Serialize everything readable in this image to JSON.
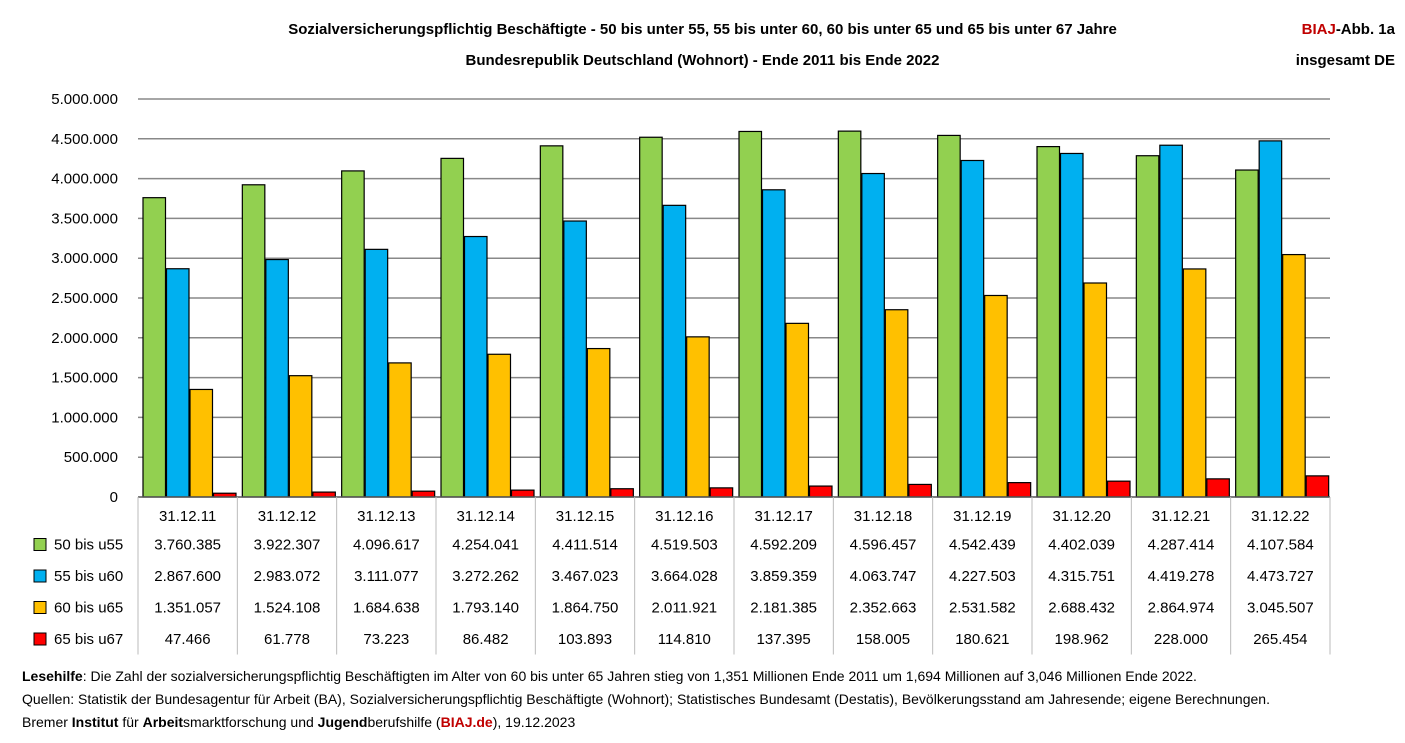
{
  "header": {
    "title_line1": "Sozialversicherungspflichtig Beschäftigte - 50 bis unter 55, 55 bis unter 60, 60 bis unter 65 und 65 bis unter 67 Jahre",
    "title_line2": "Bundesrepublik Deutschland (Wohnort) - Ende 2011 bis Ende 2022",
    "badge_biaj": "BIAJ",
    "badge_rest": "-Abb. 1a",
    "badge_line2": "insgesamt DE"
  },
  "chart_data": {
    "type": "bar",
    "title": "Sozialversicherungspflichtig Beschäftigte - 50 bis unter 55, 55 bis unter 60, 60 bis unter 65 und 65 bis unter 67 Jahre",
    "categories": [
      "31.12.11",
      "31.12.12",
      "31.12.13",
      "31.12.14",
      "31.12.15",
      "31.12.16",
      "31.12.17",
      "31.12.18",
      "31.12.19",
      "31.12.20",
      "31.12.21",
      "31.12.22"
    ],
    "series": [
      {
        "name": "50 bis u55",
        "color": "#92d050",
        "values": [
          3760385,
          3922307,
          4096617,
          4254041,
          4411514,
          4519503,
          4592209,
          4596457,
          4542439,
          4402039,
          4287414,
          4107584
        ],
        "labels": [
          "3.760.385",
          "3.922.307",
          "4.096.617",
          "4.254.041",
          "4.411.514",
          "4.519.503",
          "4.592.209",
          "4.596.457",
          "4.542.439",
          "4.402.039",
          "4.287.414",
          "4.107.584"
        ]
      },
      {
        "name": "55 bis u60",
        "color": "#00b0f0",
        "values": [
          2867600,
          2983072,
          3111077,
          3272262,
          3467023,
          3664028,
          3859359,
          4063747,
          4227503,
          4315751,
          4419278,
          4473727
        ],
        "labels": [
          "2.867.600",
          "2.983.072",
          "3.111.077",
          "3.272.262",
          "3.467.023",
          "3.664.028",
          "3.859.359",
          "4.063.747",
          "4.227.503",
          "4.315.751",
          "4.419.278",
          "4.473.727"
        ]
      },
      {
        "name": "60 bis u65",
        "color": "#ffc000",
        "values": [
          1351057,
          1524108,
          1684638,
          1793140,
          1864750,
          2011921,
          2181385,
          2352663,
          2531582,
          2688432,
          2864974,
          3045507
        ],
        "labels": [
          "1.351.057",
          "1.524.108",
          "1.684.638",
          "1.793.140",
          "1.864.750",
          "2.011.921",
          "2.181.385",
          "2.352.663",
          "2.531.582",
          "2.688.432",
          "2.864.974",
          "3.045.507"
        ]
      },
      {
        "name": "65 bis u67",
        "color": "#ff0000",
        "values": [
          47466,
          61778,
          73223,
          86482,
          103893,
          114810,
          137395,
          158005,
          180621,
          198962,
          228000,
          265454
        ],
        "labels": [
          "47.466",
          "61.778",
          "73.223",
          "86.482",
          "103.893",
          "114.810",
          "137.395",
          "158.005",
          "180.621",
          "198.962",
          "228.000",
          "265.454"
        ]
      }
    ],
    "ylim": [
      0,
      5000000
    ],
    "yticks": [
      0,
      500000,
      1000000,
      1500000,
      2000000,
      2500000,
      3000000,
      3500000,
      4000000,
      4500000,
      5000000
    ],
    "ytick_labels": [
      "0",
      "500.000",
      "1.000.000",
      "1.500.000",
      "2.000.000",
      "2.500.000",
      "3.000.000",
      "3.500.000",
      "4.000.000",
      "4.500.000",
      "5.000.000"
    ],
    "grid": true,
    "legend": "data-table below chart"
  },
  "footer": {
    "line1_bold": "Lesehilfe",
    "line1_rest": ": Die Zahl der sozialversicherungspflichtig Beschäftigten im Alter von 60 bis unter 65 Jahren stieg von 1,351 Millionen Ende 2011 um 1,694 Millionen auf 3,046 Millionen Ende 2022.",
    "line2": "Quellen: Statistik der Bundesagentur für Arbeit (BA), Sozialversicherungspflichtig Beschäftigte (Wohnort); Statistisches Bundesamt (Destatis), Bevölkerungsstand am Jahresende; eigene Berechnungen.",
    "line3_a": "Bremer ",
    "line3_b": "Institut",
    "line3_c": " für ",
    "line3_d": "Arbeit",
    "line3_e": "smarktforschung und ",
    "line3_f": "Jugend",
    "line3_g": "berufshilfe (",
    "line3_h": "BIAJ.de",
    "line3_i": "), 19.12.2023"
  }
}
